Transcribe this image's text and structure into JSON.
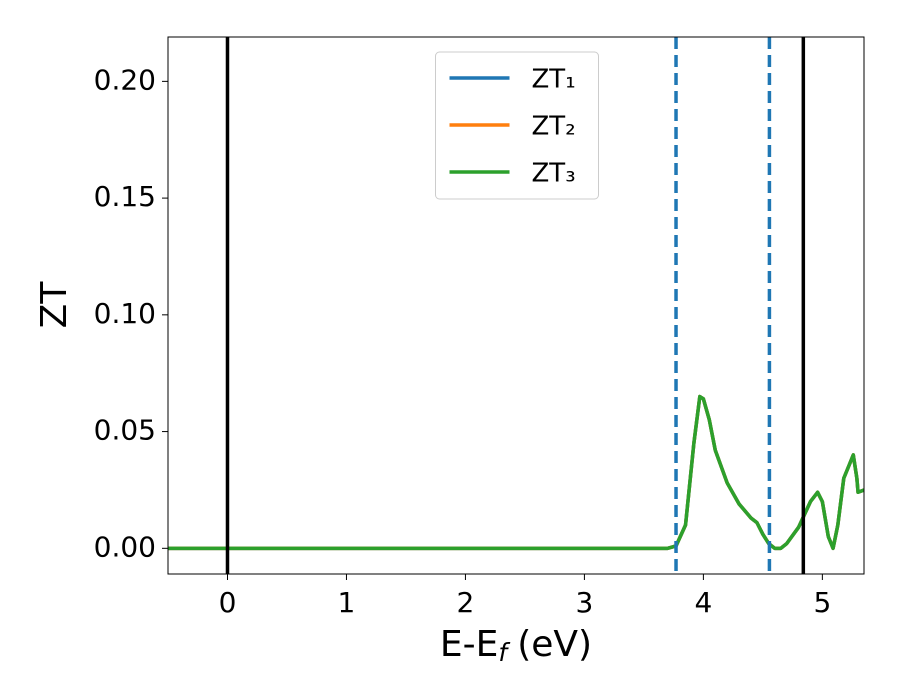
{
  "chart_data": {
    "type": "line",
    "ylabel": "ZT",
    "xlabel": {
      "main": "E-E",
      "sub": "f",
      "unit": "(eV)"
    },
    "xlim": [
      -0.5,
      5.35
    ],
    "ylim": [
      -0.011,
      0.219
    ],
    "xticks": [
      0,
      1,
      2,
      3,
      4,
      5
    ],
    "yticks": [
      {
        "value": 0,
        "label": "0.00"
      },
      {
        "value": 0.05,
        "label": "0.05"
      },
      {
        "value": 0.1,
        "label": "0.10"
      },
      {
        "value": 0.15,
        "label": "0.15"
      },
      {
        "value": 0.2,
        "label": "0.20"
      }
    ],
    "legend": "upper center",
    "grid": false,
    "x": [
      -0.5,
      3.0,
      3.6,
      3.7,
      3.77,
      3.85,
      3.92,
      3.97,
      4.0,
      4.05,
      4.1,
      4.2,
      4.3,
      4.4,
      4.45,
      4.5,
      4.55,
      4.6,
      4.65,
      4.7,
      4.8,
      4.9,
      4.96,
      5.0,
      5.05,
      5.09,
      5.13,
      5.18,
      5.22,
      5.26,
      5.29,
      5.3,
      5.35
    ],
    "series": [
      {
        "name": "ZT₁",
        "color": "#1f77b4",
        "values": [
          0,
          0,
          0,
          0,
          0.001,
          0.01,
          0.045,
          0.065,
          0.064,
          0.055,
          0.042,
          0.028,
          0.019,
          0.013,
          0.011,
          0.006,
          0.002,
          0,
          0,
          0.002,
          0.009,
          0.02,
          0.024,
          0.02,
          0.005,
          0,
          0.01,
          0.03,
          0.035,
          0.04,
          0.03,
          0.024,
          0.025
        ]
      },
      {
        "name": "ZT₂",
        "color": "#ff7f0e",
        "values": [
          0,
          0,
          0,
          0,
          0.001,
          0.01,
          0.045,
          0.065,
          0.064,
          0.055,
          0.042,
          0.028,
          0.019,
          0.013,
          0.011,
          0.006,
          0.002,
          0,
          0,
          0.002,
          0.009,
          0.02,
          0.024,
          0.02,
          0.005,
          0,
          0.01,
          0.03,
          0.035,
          0.04,
          0.03,
          0.024,
          0.025
        ]
      },
      {
        "name": "ZT₃",
        "color": "#2ca02c",
        "values": [
          0,
          0,
          0,
          0,
          0.001,
          0.01,
          0.045,
          0.065,
          0.064,
          0.055,
          0.042,
          0.028,
          0.019,
          0.013,
          0.011,
          0.006,
          0.002,
          0,
          0,
          0.002,
          0.009,
          0.02,
          0.024,
          0.02,
          0.005,
          0,
          0.01,
          0.03,
          0.035,
          0.04,
          0.03,
          0.024,
          0.025
        ]
      }
    ],
    "vlines": [
      {
        "x": 0,
        "color": "#000000",
        "style": "solid"
      },
      {
        "x": 4.84,
        "color": "#000000",
        "style": "solid"
      },
      {
        "x": 3.77,
        "color": "#1f77b4",
        "style": "dashed"
      },
      {
        "x": 4.555,
        "color": "#1f77b4",
        "style": "dashed"
      }
    ]
  }
}
